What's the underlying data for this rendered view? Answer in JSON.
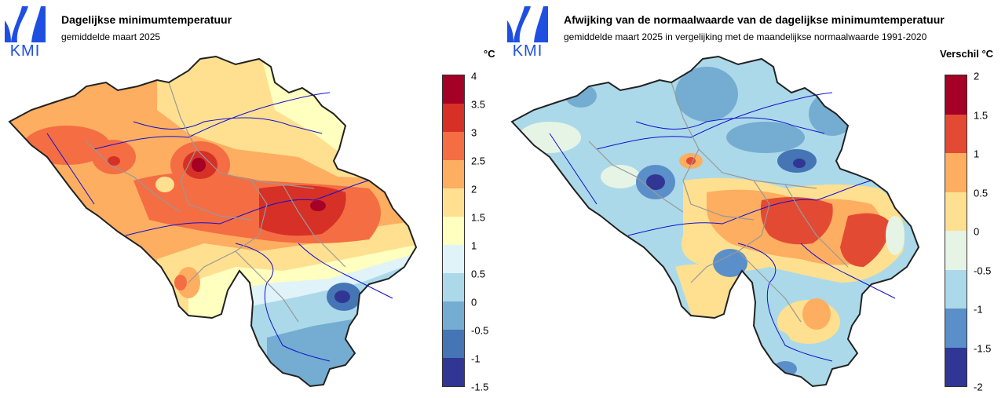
{
  "logo": {
    "text": "KMI"
  },
  "left": {
    "title": "Dagelijkse minimumtemperatuur",
    "subtitle": "gemiddelde maart 2025",
    "unit": "°C",
    "legend": {
      "labels": [
        "4",
        "3.5",
        "3",
        "2.5",
        "2",
        "1.5",
        "1",
        "0.5",
        "0",
        "-0.5",
        "-1",
        "-1.5"
      ],
      "colors": [
        "#a50026",
        "#d73027",
        "#f46d43",
        "#fdae61",
        "#fee090",
        "#ffffbf",
        "#e0f3f8",
        "#abd9e9",
        "#74add1",
        "#4575b4",
        "#313695"
      ]
    }
  },
  "right": {
    "title": "Afwijking van de normaalwaarde van de dagelijkse minimumtemperatuur",
    "subtitle": "gemiddelde maart 2025 in vergelijking met de maandelijkse normaalwaarde 1991-2020",
    "unit": "Verschil °C",
    "legend": {
      "labels": [
        "2",
        "1.5",
        "1",
        "0.5",
        "0",
        "-0.5",
        "-1",
        "-1.5",
        "-2"
      ],
      "colors": [
        "#a50026",
        "#e34a33",
        "#fdae61",
        "#fee090",
        "#e6f4e6",
        "#abd9e9",
        "#5b8fc9",
        "#313695"
      ]
    }
  }
}
